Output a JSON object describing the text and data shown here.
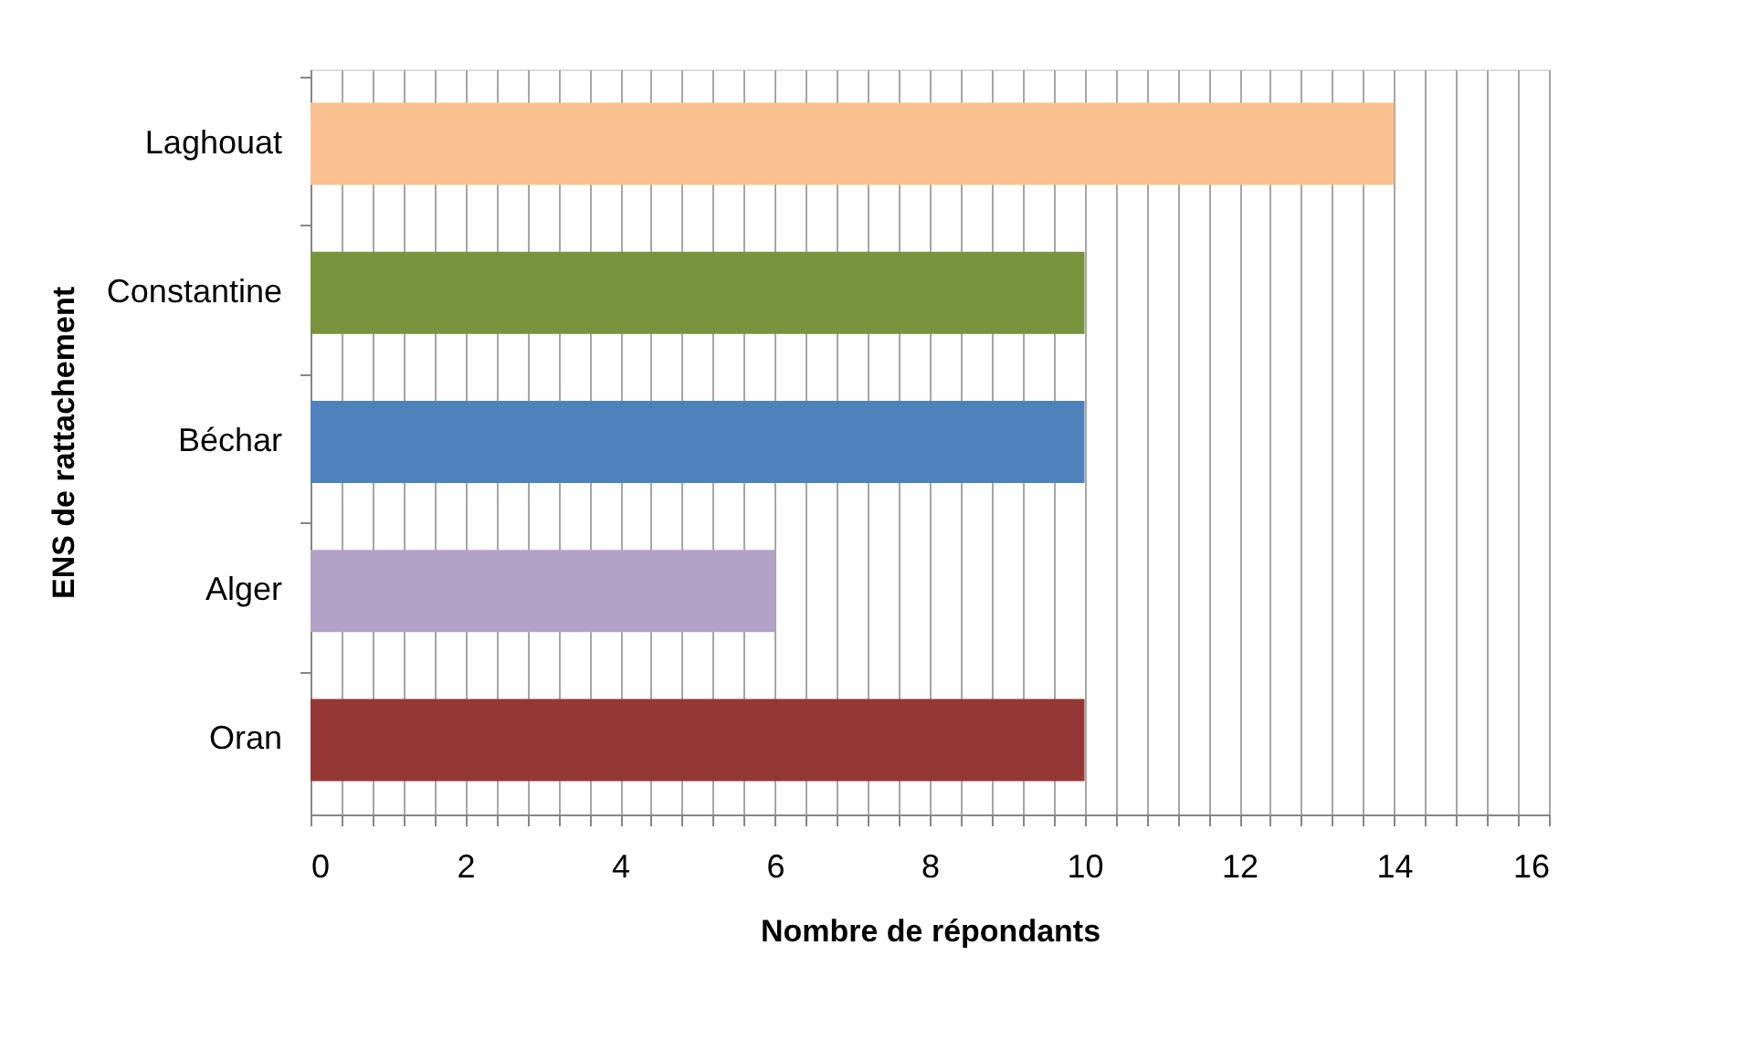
{
  "chart_data": {
    "type": "bar",
    "orientation": "horizontal",
    "categories": [
      "Laghouat",
      "Constantine",
      "Béchar",
      "Alger",
      "Oran"
    ],
    "values": [
      14,
      10,
      10,
      6,
      10
    ],
    "colors": [
      "#fac090",
      "#77933c",
      "#4f81bd",
      "#b3a2c7",
      "#953735"
    ],
    "xlabel": "Nombre de répondants",
    "ylabel": "ENS de rattachement",
    "xlim": [
      0,
      16
    ],
    "xticks": [
      0,
      {
        "value": 0.4,
        "label": null
      },
      {
        "value": 0.8,
        "label": null
      },
      {
        "value": 1.2,
        "label": null
      },
      {
        "value": 1.6,
        "label": null
      },
      2,
      {
        "value": 2.4,
        "label": null
      },
      {
        "value": 2.8,
        "label": null
      },
      {
        "value": 3.2,
        "label": null
      },
      {
        "value": 3.6,
        "label": null
      },
      4,
      {
        "value": 4.4,
        "label": null
      },
      {
        "value": 4.8,
        "label": null
      },
      {
        "value": 5.2,
        "label": null
      },
      {
        "value": 5.6,
        "label": null
      },
      6,
      {
        "value": 6.4,
        "label": null
      },
      {
        "value": 6.8,
        "label": null
      },
      {
        "value": 7.2,
        "label": null
      },
      {
        "value": 7.6,
        "label": null
      },
      8,
      {
        "value": 8.4,
        "label": null
      },
      {
        "value": 8.8,
        "label": null
      },
      {
        "value": 9.2,
        "label": null
      },
      {
        "value": 9.6,
        "label": null
      },
      10,
      {
        "value": 10.4,
        "label": null
      },
      {
        "value": 10.8,
        "label": null
      },
      {
        "value": 11.2,
        "label": null
      },
      {
        "value": 11.6,
        "label": null
      },
      12,
      {
        "value": 12.4,
        "label": null
      },
      {
        "value": 12.8,
        "label": null
      },
      {
        "value": 13.2,
        "label": null
      },
      {
        "value": 13.6,
        "label": null
      },
      14,
      {
        "value": 14.4,
        "label": null
      },
      {
        "value": 14.8,
        "label": null
      },
      {
        "value": 15.2,
        "label": null
      },
      {
        "value": 15.6,
        "label": null
      },
      16
    ],
    "grid": "x"
  }
}
